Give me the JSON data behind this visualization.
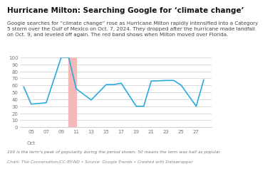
{
  "title": "Hurricane Milton: Searching Google for ‘climate change’",
  "subtitle": "Google searches for “climate change” rose as Hurricane Milton rapidly intensified into a Category\n5 storm over the Gulf of Mexico on Oct. 7, 2024. They dropped after the hurricane made landfall\non Oct. 9, and leveled off again. The red band shows when Milton moved over Florida.",
  "footnote": "100 is the term’s peak of popularity during the period shown; 50 means the term was half as popular.",
  "source": "Chart: The Conversation/CC-BY-ND • Source: Google Trends • Created with Datawrapper",
  "x_labels": [
    "05",
    "07",
    "09",
    "11",
    "13",
    "15",
    "17",
    "19",
    "21",
    "23",
    "25",
    "27"
  ],
  "x_values": [
    5,
    7,
    9,
    11,
    13,
    15,
    17,
    19,
    21,
    23,
    25,
    27
  ],
  "y_data_x": [
    4,
    5,
    7,
    9,
    10,
    11,
    13,
    15,
    16,
    17,
    19,
    20,
    21,
    23,
    24,
    25,
    27,
    28
  ],
  "y_data_y": [
    58,
    33,
    35,
    100,
    100,
    55,
    39,
    61,
    61,
    63,
    30,
    30,
    66,
    67,
    67,
    60,
    30,
    68
  ],
  "line_color": "#29abe2",
  "red_band_x_start": 10,
  "red_band_x_end": 11,
  "red_band_color": "#f5b8b8",
  "ylim": [
    0,
    100
  ],
  "xlim": [
    3.5,
    29
  ],
  "background_color": "#ffffff",
  "grid_color": "#cccccc",
  "title_fontsize": 7.5,
  "subtitle_fontsize": 5.2,
  "footnote_fontsize": 4.2,
  "tick_fontsize": 5.0,
  "xlabel_bottom": "Oct"
}
